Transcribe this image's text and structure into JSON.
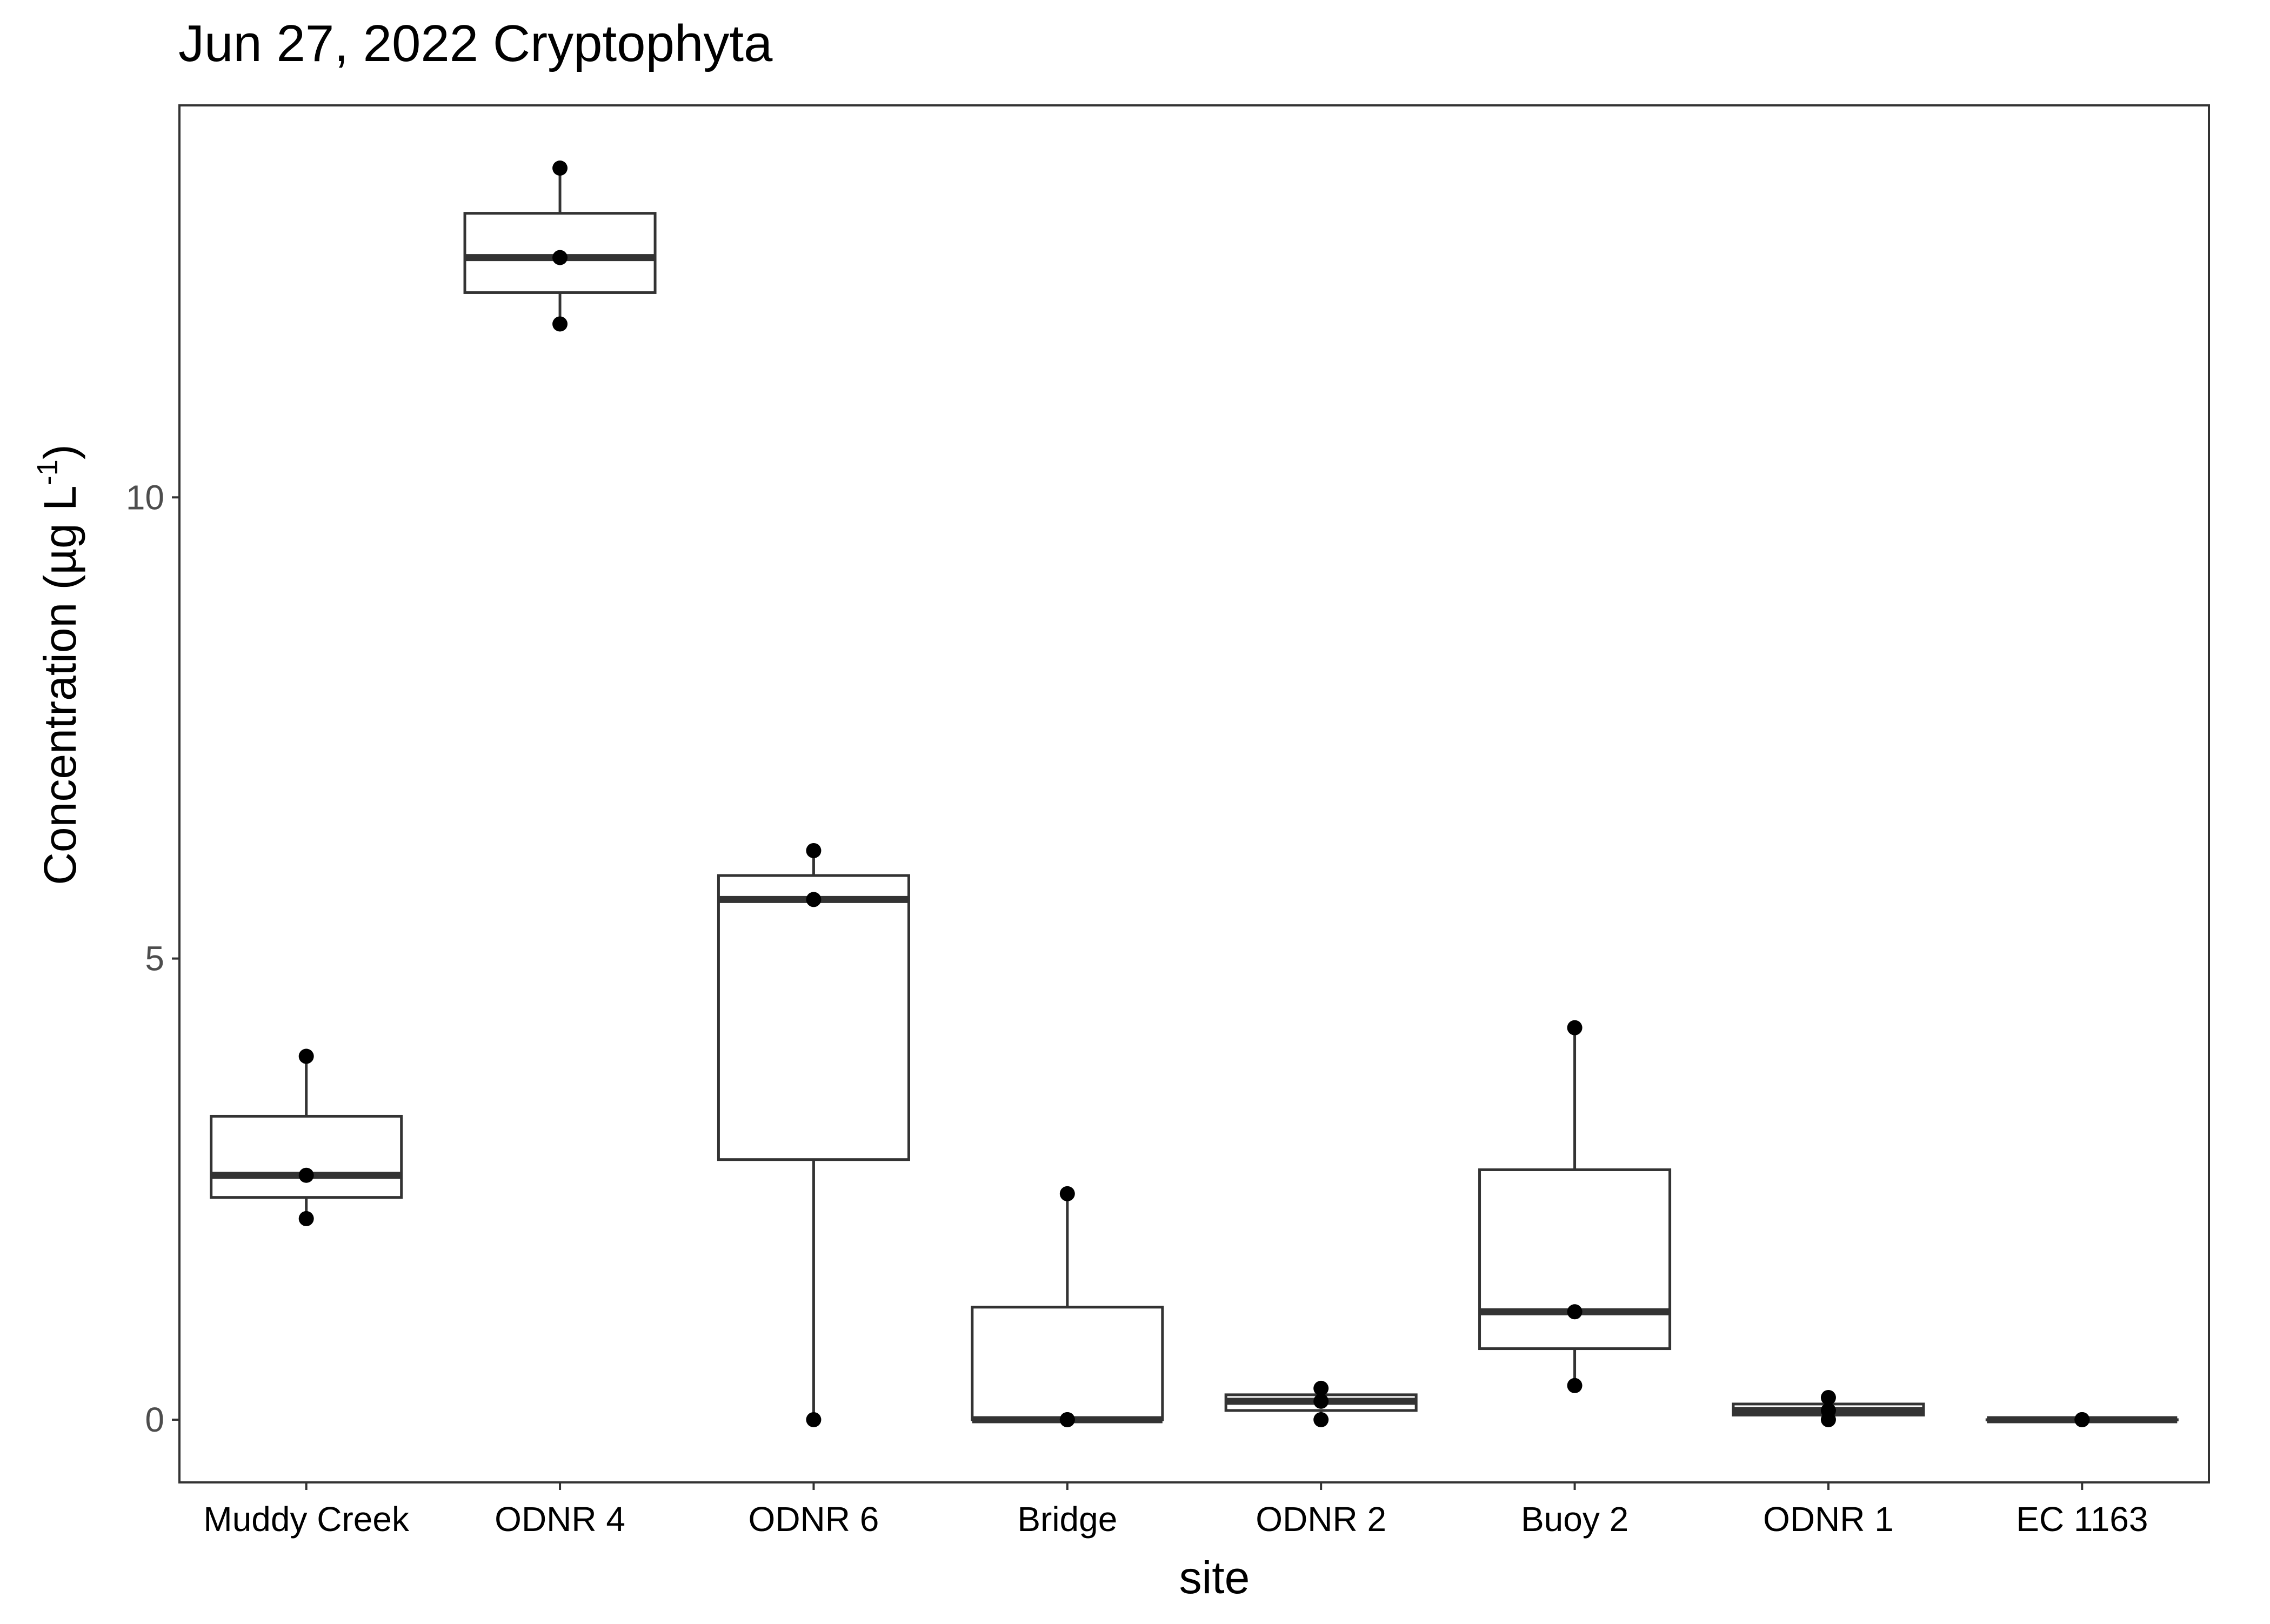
{
  "chart_data": {
    "type": "box",
    "title": "Jun 27, 2022 Cryptophyta",
    "xlabel": "site",
    "ylabel_main": "Concentration (µg L",
    "ylabel_sup": "-1",
    "ylabel_close": ")",
    "ylim": [
      -0.68,
      14.25
    ],
    "yticks": [
      0,
      5,
      10
    ],
    "grid": false,
    "legend": "none",
    "categories": [
      "Muddy Creek",
      "ODNR 4",
      "ODNR 6",
      "Bridge",
      "ODNR 2",
      "Buoy 2",
      "ODNR 1",
      "EC 1163"
    ],
    "boxes": [
      {
        "site": "Muddy Creek",
        "min": 2.18,
        "q1": 2.41,
        "median": 2.65,
        "q3": 3.29,
        "max": 3.94,
        "points": [
          3.94,
          2.65,
          2.18
        ]
      },
      {
        "site": "ODNR 4",
        "min": 11.88,
        "q1": 12.22,
        "median": 12.6,
        "q3": 13.08,
        "max": 13.57,
        "points": [
          13.57,
          12.6,
          11.88
        ]
      },
      {
        "site": "ODNR 6",
        "min": 0.0,
        "q1": 2.82,
        "median": 5.64,
        "q3": 5.9,
        "max": 6.17,
        "points": [
          6.17,
          5.64,
          0.0
        ]
      },
      {
        "site": "Bridge",
        "min": 0.0,
        "q1": 0.0,
        "median": 0.0,
        "q3": 1.22,
        "max": 2.45,
        "points": [
          2.45,
          0.0,
          0.0
        ]
      },
      {
        "site": "ODNR 2",
        "min": 0.0,
        "q1": 0.1,
        "median": 0.2,
        "q3": 0.27,
        "max": 0.34,
        "points": [
          0.34,
          0.2,
          0.0
        ]
      },
      {
        "site": "Buoy 2",
        "min": 0.37,
        "q1": 0.77,
        "median": 1.17,
        "q3": 2.71,
        "max": 4.25,
        "points": [
          4.25,
          1.17,
          0.37
        ]
      },
      {
        "site": "ODNR 1",
        "min": 0.0,
        "q1": 0.05,
        "median": 0.1,
        "q3": 0.17,
        "max": 0.24,
        "points": [
          0.24,
          0.1,
          0.0
        ]
      },
      {
        "site": "EC 1163",
        "min": 0.0,
        "q1": 0.0,
        "median": 0.0,
        "q3": 0.0,
        "max": 0.0,
        "points": [
          0.0,
          0.0,
          0.0
        ]
      }
    ],
    "colors": {
      "box_stroke": "#333333",
      "point": "#000000",
      "panel_border": "#333333",
      "tick_text": "#4d4d4d",
      "title_text": "#000000"
    }
  }
}
